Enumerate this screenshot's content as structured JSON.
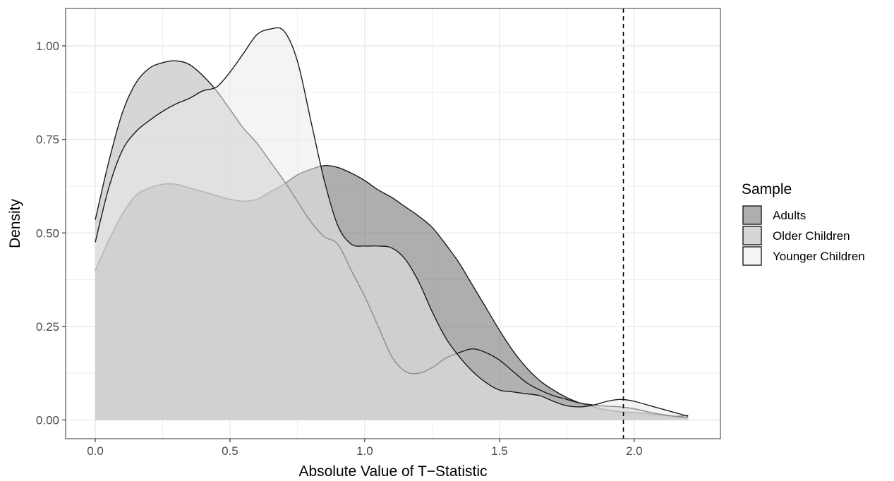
{
  "chart_data": {
    "type": "area",
    "xlabel": "Absolute Value of T−Statistic",
    "ylabel": "Density",
    "xlim": [
      -0.11,
      2.32
    ],
    "ylim": [
      -0.05,
      1.1
    ],
    "x_ticks": [
      0.0,
      0.5,
      1.0,
      1.5,
      2.0
    ],
    "x_tick_labels": [
      "0.0",
      "0.5",
      "1.0",
      "1.5",
      "2.0"
    ],
    "y_ticks": [
      0.0,
      0.25,
      0.5,
      0.75,
      1.0
    ],
    "y_tick_labels": [
      "0.00",
      "0.25",
      "0.50",
      "0.75",
      "1.00"
    ],
    "grid": true,
    "legend_position": "right",
    "legend_title": "Sample",
    "reference_line": {
      "x": 1.96,
      "style": "dashed"
    },
    "series": [
      {
        "name": "Adults",
        "color": "#6b6b6b",
        "x": [
          0.0,
          0.05,
          0.1,
          0.15,
          0.2,
          0.25,
          0.3,
          0.35,
          0.4,
          0.45,
          0.5,
          0.55,
          0.6,
          0.65,
          0.7,
          0.75,
          0.8,
          0.85,
          0.9,
          0.95,
          1.0,
          1.05,
          1.1,
          1.15,
          1.2,
          1.25,
          1.3,
          1.35,
          1.4,
          1.45,
          1.5,
          1.55,
          1.6,
          1.65,
          1.7,
          1.75,
          1.8,
          1.85,
          1.9,
          1.95,
          2.0,
          2.05,
          2.1,
          2.15,
          2.2
        ],
        "y": [
          0.4,
          0.48,
          0.55,
          0.6,
          0.62,
          0.63,
          0.63,
          0.62,
          0.61,
          0.6,
          0.59,
          0.585,
          0.59,
          0.61,
          0.63,
          0.655,
          0.67,
          0.68,
          0.675,
          0.66,
          0.64,
          0.615,
          0.595,
          0.57,
          0.545,
          0.515,
          0.47,
          0.42,
          0.36,
          0.3,
          0.24,
          0.185,
          0.14,
          0.105,
          0.08,
          0.06,
          0.045,
          0.035,
          0.027,
          0.022,
          0.02,
          0.017,
          0.013,
          0.01,
          0.012
        ]
      },
      {
        "name": "Older Children",
        "color": "#b4b4b4",
        "x": [
          0.0,
          0.05,
          0.1,
          0.15,
          0.2,
          0.25,
          0.3,
          0.35,
          0.4,
          0.45,
          0.5,
          0.55,
          0.6,
          0.65,
          0.7,
          0.75,
          0.8,
          0.85,
          0.9,
          0.95,
          1.0,
          1.05,
          1.1,
          1.15,
          1.2,
          1.25,
          1.3,
          1.35,
          1.4,
          1.45,
          1.5,
          1.55,
          1.6,
          1.65,
          1.7,
          1.75,
          1.8,
          1.85,
          1.9,
          1.95,
          2.0,
          2.05,
          2.1,
          2.15,
          2.2
        ],
        "y": [
          0.535,
          0.69,
          0.82,
          0.9,
          0.94,
          0.955,
          0.96,
          0.95,
          0.92,
          0.88,
          0.83,
          0.78,
          0.74,
          0.69,
          0.64,
          0.585,
          0.53,
          0.49,
          0.47,
          0.4,
          0.33,
          0.25,
          0.17,
          0.13,
          0.125,
          0.14,
          0.165,
          0.18,
          0.19,
          0.18,
          0.16,
          0.13,
          0.1,
          0.08,
          0.065,
          0.055,
          0.045,
          0.04,
          0.037,
          0.035,
          0.03,
          0.022,
          0.015,
          0.01,
          0.006
        ]
      },
      {
        "name": "Younger Children",
        "color": "#ebebeb",
        "x": [
          0.0,
          0.05,
          0.1,
          0.15,
          0.2,
          0.25,
          0.3,
          0.35,
          0.4,
          0.45,
          0.5,
          0.55,
          0.6,
          0.65,
          0.7,
          0.75,
          0.8,
          0.85,
          0.9,
          0.95,
          1.0,
          1.05,
          1.1,
          1.15,
          1.2,
          1.25,
          1.3,
          1.35,
          1.4,
          1.45,
          1.5,
          1.55,
          1.6,
          1.65,
          1.7,
          1.75,
          1.8,
          1.85,
          1.9,
          1.95,
          2.0,
          2.05,
          2.1,
          2.15,
          2.2
        ],
        "y": [
          0.475,
          0.62,
          0.72,
          0.77,
          0.8,
          0.825,
          0.845,
          0.86,
          0.88,
          0.89,
          0.93,
          0.98,
          1.03,
          1.045,
          1.04,
          0.96,
          0.8,
          0.64,
          0.52,
          0.47,
          0.465,
          0.465,
          0.46,
          0.43,
          0.37,
          0.29,
          0.22,
          0.17,
          0.13,
          0.1,
          0.08,
          0.075,
          0.07,
          0.065,
          0.05,
          0.038,
          0.035,
          0.04,
          0.05,
          0.055,
          0.05,
          0.04,
          0.03,
          0.02,
          0.01
        ]
      }
    ]
  }
}
